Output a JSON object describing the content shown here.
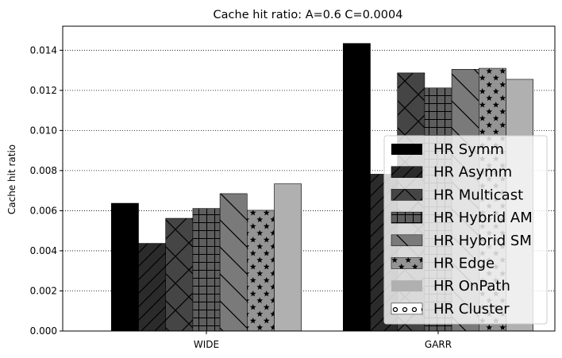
{
  "chart_data": {
    "type": "bar",
    "title": "Cache hit ratio: A=0.6 C=0.0004",
    "xlabel": "",
    "ylabel": "Cache hit ratio",
    "categories": [
      "WIDE",
      "GARR"
    ],
    "ylim": [
      0,
      0.0152
    ],
    "yticks": [
      "0.000",
      "0.002",
      "0.004",
      "0.006",
      "0.008",
      "0.010",
      "0.012",
      "0.014"
    ],
    "grid": "horizontal dotted",
    "legend_position": "lower-right",
    "series": [
      {
        "name": "HR Symm",
        "values": [
          0.00637,
          0.01434
        ],
        "color": "#000000",
        "pattern": "solid"
      },
      {
        "name": "HR Asymm",
        "values": [
          0.00437,
          0.00782
        ],
        "color": "#2b2b2b",
        "pattern": "diagonal"
      },
      {
        "name": "HR Multicast",
        "values": [
          0.00562,
          0.01287
        ],
        "color": "#454545",
        "pattern": "cross"
      },
      {
        "name": "HR Hybrid AM",
        "values": [
          0.00611,
          0.01212
        ],
        "color": "#5e5e5e",
        "pattern": "grid"
      },
      {
        "name": "HR Hybrid SM",
        "values": [
          0.00685,
          0.01305
        ],
        "color": "#7a7a7a",
        "pattern": "backdiagonal"
      },
      {
        "name": "HR Edge",
        "values": [
          0.00602,
          0.0131
        ],
        "color": "#949494",
        "pattern": "stars"
      },
      {
        "name": "HR OnPath",
        "values": [
          0.00734,
          0.01255
        ],
        "color": "#b0b0b0",
        "pattern": "solid"
      },
      {
        "name": "HR Cluster",
        "values": [
          0,
          0
        ],
        "color": "#ffffff",
        "pattern": "rings"
      }
    ]
  }
}
